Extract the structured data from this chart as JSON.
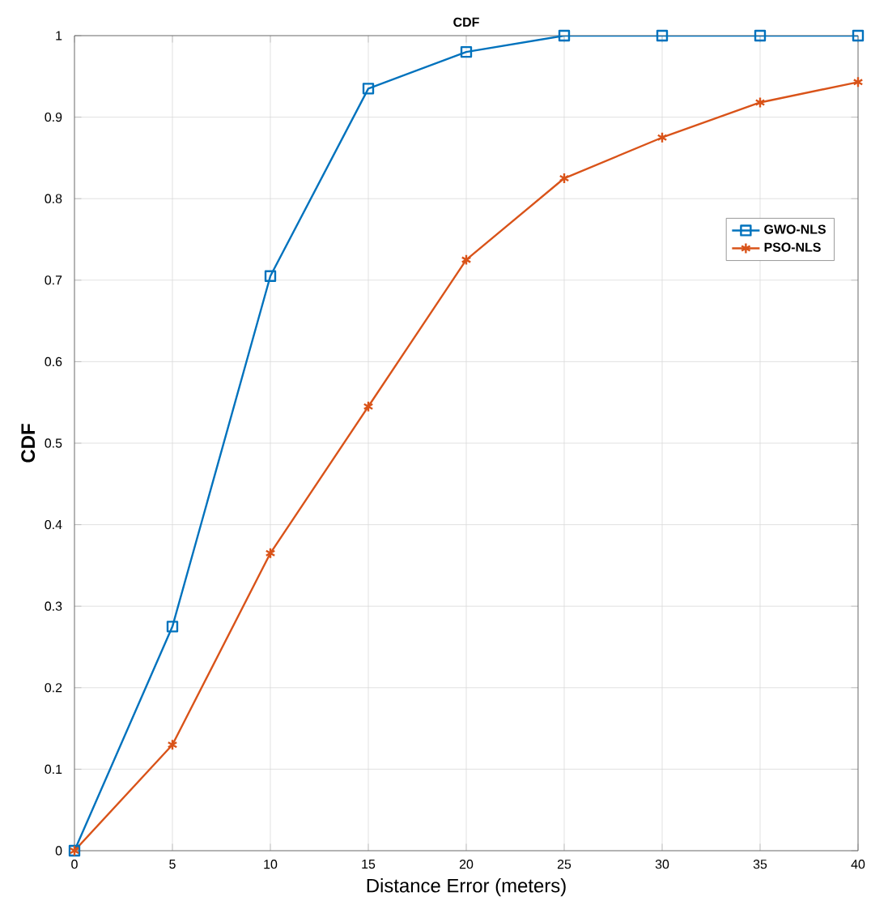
{
  "chart_data": {
    "type": "line",
    "title": "CDF",
    "xlabel": "Distance Error (meters)",
    "ylabel": "CDF",
    "x": [
      0,
      5,
      10,
      15,
      20,
      25,
      30,
      35,
      40
    ],
    "series": [
      {
        "name": "GWO-NLS",
        "color": "#0072bd",
        "marker": "square",
        "values": [
          0,
          0.275,
          0.705,
          0.935,
          0.98,
          1,
          1,
          1,
          1
        ]
      },
      {
        "name": "PSO-NLS",
        "color": "#d95319",
        "marker": "cross",
        "values": [
          0,
          0.13,
          0.365,
          0.545,
          0.725,
          0.825,
          0.875,
          0.918,
          0.943
        ]
      }
    ],
    "xlim": [
      0,
      40
    ],
    "ylim": [
      0,
      1
    ],
    "xticks": [
      0,
      5,
      10,
      15,
      20,
      25,
      30,
      35,
      40
    ],
    "yticks": [
      0,
      0.1,
      0.2,
      0.3,
      0.4,
      0.5,
      0.6,
      0.7,
      0.8,
      0.9,
      1
    ],
    "grid": true,
    "legend": "right",
    "line_style": "solid"
  }
}
